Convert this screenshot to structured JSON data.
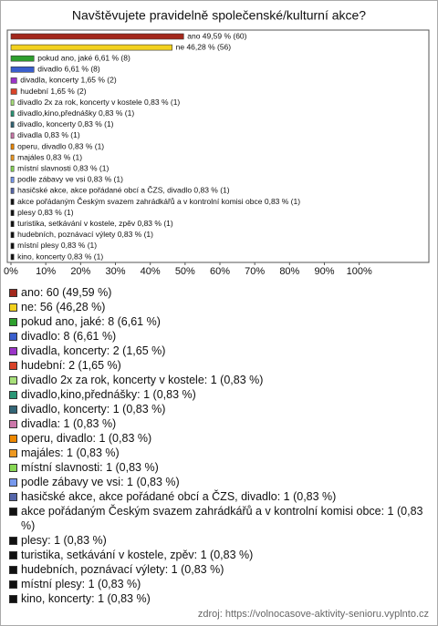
{
  "chart_data": {
    "type": "bar",
    "orientation": "horizontal",
    "title": "Navštěvujete pravidelně společenské/kulturní akce?",
    "values": [
      49.59,
      46.28,
      6.61,
      6.61,
      1.65,
      1.65,
      0.83,
      0.83,
      0.83,
      0.83,
      0.83,
      0.83,
      0.83,
      0.83,
      0.83,
      0.83,
      0.83,
      0.83,
      0.83,
      0.83,
      0.83
    ],
    "value_labels": [
      "ano 49,59 % (60)",
      "ne 46,28 % (56)",
      "pokud ano, jaké 6,61 % (8)",
      "divadlo 6,61 % (8)",
      "divadla, koncerty 1,65 % (2)",
      "hudební 1,65 % (2)",
      "divadlo 2x za rok, koncerty v kostele 0,83 % (1)",
      "divadlo,kino,přednášky 0,83 % (1)",
      "divadlo, koncerty 0,83 % (1)",
      "divadla 0,83 % (1)",
      "operu, divadlo 0,83 % (1)",
      "majáles 0,83 % (1)",
      "místní slavnosti 0,83 % (1)",
      "podle zábavy ve vsi 0,83 % (1)",
      "hasičské akce, akce pořádané obcí a ČZS, divadlo 0,83 % (1)",
      "akce pořádaným Českým svazem zahrádkářů a v kontrolní komisi obce 0,83 % (1)",
      "plesy 0,83 % (1)",
      "turistika, setkávání v kostele, zpěv 0,83 % (1)",
      "hudebních, poznávací výlety 0,83 % (1)",
      "místní plesy 0,83 % (1)",
      "kino, koncerty 0,83 % (1)"
    ],
    "legend_labels": [
      "ano: 60 (49,59 %)",
      "ne: 56 (46,28 %)",
      "pokud ano, jaké: 8 (6,61 %)",
      "divadlo: 8 (6,61 %)",
      "divadla, koncerty: 2 (1,65 %)",
      "hudební: 2 (1,65 %)",
      "divadlo 2x za rok, koncerty v kostele: 1 (0,83 %)",
      "divadlo,kino,přednášky: 1 (0,83 %)",
      "divadlo, koncerty: 1 (0,83 %)",
      "divadla: 1 (0,83 %)",
      "operu, divadlo: 1 (0,83 %)",
      "majáles: 1 (0,83 %)",
      "místní slavnosti: 1 (0,83 %)",
      "podle zábavy ve vsi: 1 (0,83 %)",
      "hasičské akce, akce pořádané obcí a ČZS, divadlo: 1 (0,83 %)",
      "akce pořádaným Českým svazem zahrádkářů a v kontrolní komisi obce: 1 (0,83 %)",
      "plesy: 1 (0,83 %)",
      "turistika, setkávání v kostele, zpěv: 1 (0,83 %)",
      "hudebních, poznávací výlety: 1 (0,83 %)",
      "místní plesy: 1 (0,83 %)",
      "kino, koncerty: 1 (0,83 %)"
    ],
    "colors": [
      "#a3281c",
      "#f2d11e",
      "#2ea02e",
      "#3a5fcd",
      "#9b35c8",
      "#d9442a",
      "#a8e07a",
      "#2a9676",
      "#336677",
      "#cc77aa",
      "#ee8800",
      "#ee9922",
      "#88d855",
      "#7799ee",
      "#5566aa",
      "#111111",
      "#111111",
      "#111111",
      "#111111",
      "#111111",
      "#111111"
    ],
    "xlim": [
      0,
      120
    ],
    "xticks": [
      {
        "value": 0,
        "label": "0%"
      },
      {
        "value": 10,
        "label": "10%"
      },
      {
        "value": 20,
        "label": "20%"
      },
      {
        "value": 30,
        "label": "30%"
      },
      {
        "value": 40,
        "label": "40%"
      },
      {
        "value": 50,
        "label": "50%"
      },
      {
        "value": 60,
        "label": "60%"
      },
      {
        "value": 70,
        "label": "70%"
      },
      {
        "value": 80,
        "label": "80%"
      },
      {
        "value": 90,
        "label": "90%"
      },
      {
        "value": 100,
        "label": "100%"
      }
    ],
    "source": "zdroj: https://volnocasove-aktivity-senioru.vyplnto.cz"
  }
}
